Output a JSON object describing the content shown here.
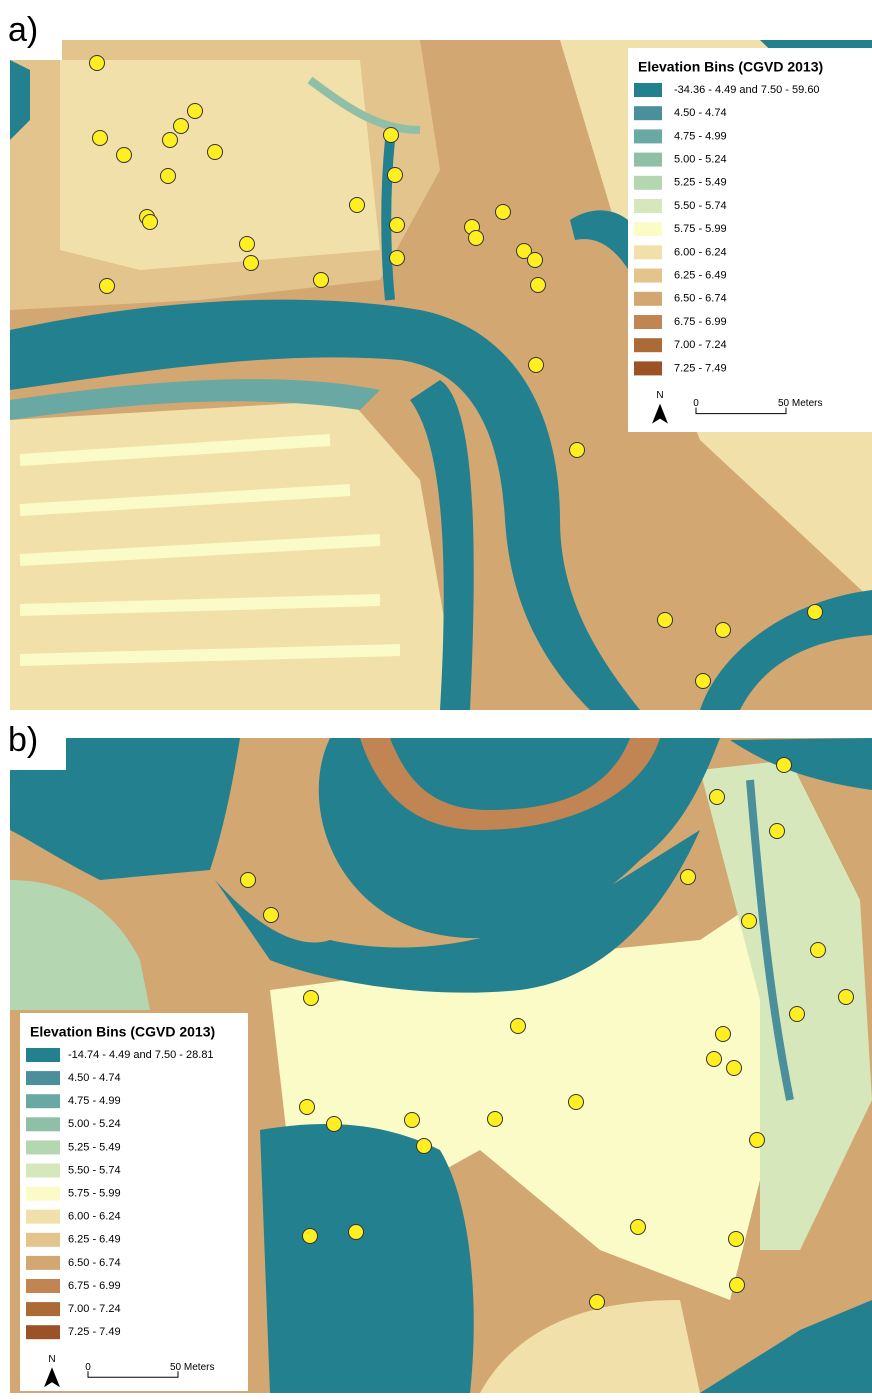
{
  "panels": [
    {
      "label": "a)",
      "legend": {
        "title": "Elevation Bins (CGVD 2013)",
        "items": [
          {
            "label": "-34.36 - 4.49 and 7.50 - 59.60",
            "color": "#23808f"
          },
          {
            "label": "4.50 - 4.74",
            "color": "#4a8f9a"
          },
          {
            "label": "4.75 - 4.99",
            "color": "#6aa8a4"
          },
          {
            "label": "5.00 - 5.24",
            "color": "#8fbfa6"
          },
          {
            "label": "5.25 - 5.49",
            "color": "#b4d6b0"
          },
          {
            "label": "5.50 - 5.74",
            "color": "#d6e8bb"
          },
          {
            "label": "5.75 - 5.99",
            "color": "#fbfbc8"
          },
          {
            "label": "6.00 - 6.24",
            "color": "#f1e0a9"
          },
          {
            "label": "6.25 - 6.49",
            "color": "#e2c48c"
          },
          {
            "label": "6.50 - 6.74",
            "color": "#d2a771"
          },
          {
            "label": "6.75 - 6.99",
            "color": "#c08552"
          },
          {
            "label": "7.00 - 7.24",
            "color": "#ac6a37"
          },
          {
            "label": "7.25 - 7.49",
            "color": "#9b5226"
          }
        ]
      },
      "north": "N",
      "scale_zero": "0",
      "scale_distance": "50 Meters"
    },
    {
      "label": "b)",
      "legend": {
        "title": "Elevation Bins (CGVD 2013)",
        "items": [
          {
            "label": "-14.74 - 4.49 and 7.50 - 28.81",
            "color": "#23808f"
          },
          {
            "label": "4.50 - 4.74",
            "color": "#4a8f9a"
          },
          {
            "label": "4.75 - 4.99",
            "color": "#6aa8a4"
          },
          {
            "label": "5.00 - 5.24",
            "color": "#8fbfa6"
          },
          {
            "label": "5.25 - 5.49",
            "color": "#b4d6b0"
          },
          {
            "label": "5.50 - 5.74",
            "color": "#d6e8bb"
          },
          {
            "label": "5.75 - 5.99",
            "color": "#fbfbc8"
          },
          {
            "label": "6.00 - 6.24",
            "color": "#f1e0a9"
          },
          {
            "label": "6.25 - 6.49",
            "color": "#e2c48c"
          },
          {
            "label": "6.50 - 6.74",
            "color": "#d2a771"
          },
          {
            "label": "6.75 - 6.99",
            "color": "#c08552"
          },
          {
            "label": "7.00 - 7.24",
            "color": "#ac6a37"
          },
          {
            "label": "7.25 - 7.49",
            "color": "#9b5226"
          }
        ]
      },
      "north": "N",
      "scale_zero": "0",
      "scale_distance": "50 Meters"
    }
  ]
}
